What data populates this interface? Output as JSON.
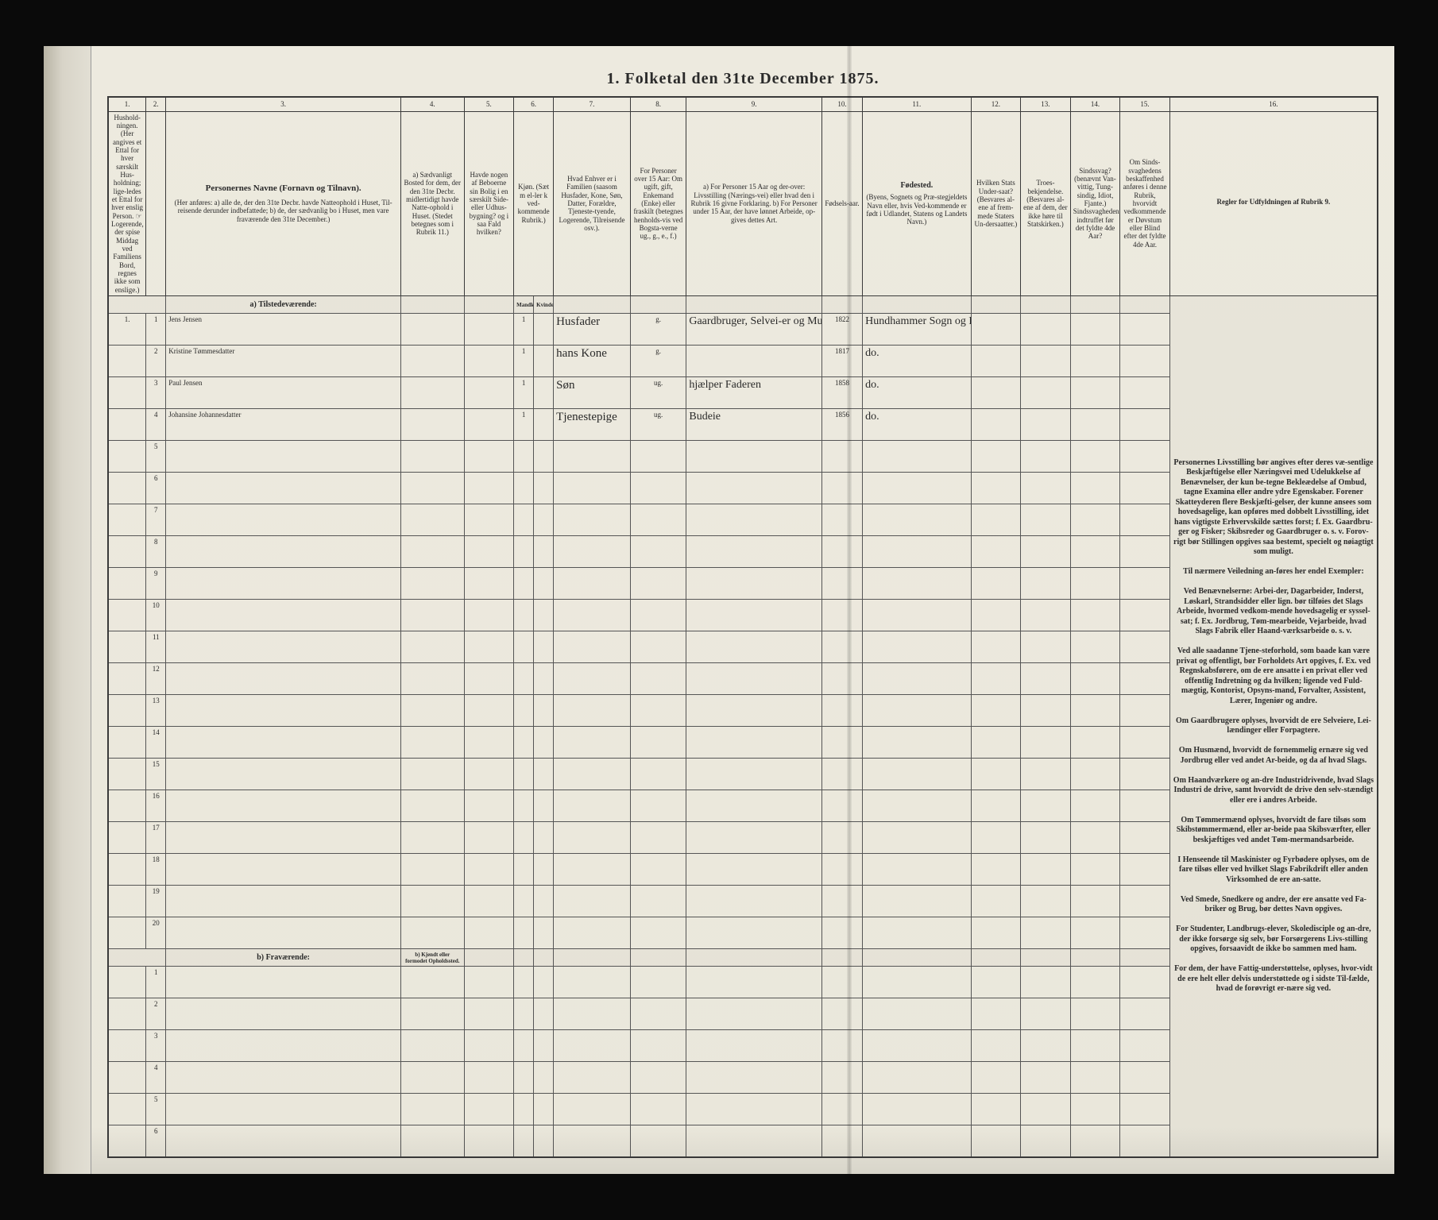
{
  "title": "1.  Folketal den 31te December 1875.",
  "columns": {
    "nums": [
      "1.",
      "2.",
      "3.",
      "4.",
      "5.",
      "6.",
      "7.",
      "8.",
      "9.",
      "10.",
      "11.",
      "12.",
      "13.",
      "14.",
      "15.",
      "16."
    ],
    "h1": "Hushold-ningen. (Her angives et Ettal for hver særskilt Hus-holdning; lige-ledes et Ettal for hver enslig Person. ☞ Logerende, der spise Middag ved Familiens Bord, regnes ikke som enslige.)",
    "h2": "",
    "h3_title": "Personernes Navne (Fornavn og Tilnavn).",
    "h3_body": "(Her anføres: a) alle de, der den 31te Decbr. havde Natteophold i Huset, Til-reisende derunder indbefattede; b) de, der sædvanlig bo i Huset, men vare fraværende den 31te December.)",
    "h4": "a) Sædvanligt Bosted for dem, der den 31te Decbr. midlertidigt havde Natte-ophold i Huset. (Stedet betegnes som i Rubrik 11.)",
    "h5": "Havde nogen af Beboerne sin Bolig i en særskilt Side- eller Udhus-bygning? og i saa Fald hvilken?",
    "h6": "Kjøn. (Sæt m el-ler k ved-kommende Rubrik.)",
    "h7": "Hvad Enhver er i Familien (saasom Husfader, Kone, Søn, Datter, Forældre, Tjeneste-tyende, Logerende, Tilreisende osv.).",
    "h8": "For Personer over 15 Aar: Om ugift, gift, Enkemand (Enke) eller fraskilt (betegnes henholds-vis ved Bogsta-verne ug., g., e., f.)",
    "h9": "a) For Personer 15 Aar og der-over: Livsstilling (Nærings-vei) eller hvad den i Rubrik 16 givne Forklaring. b) For Personer under 15 Aar, der have lønnet Arbeide, op-gives dettes Art.",
    "h10": "Fødsels-aar.",
    "h11_title": "Fødested.",
    "h11_body": "(Byens, Sognets og Præ-stegjeldets Navn eller, hvis Ved-kommende er født i Udlandet, Statens og Landets Navn.)",
    "h12": "Hvilken Stats Under-saat? (Besvares al-ene af frem-mede Staters Un-dersaatter.)",
    "h13": "Troes-bekjendelse. (Besvares al-ene af dem, der ikke høre til Statskirken.)",
    "h14": "Sindssvag? (benævnt Van-vittig, Tung-sindig, Idiot, Fjante.) Sindssvagheden indtruffet før det fyldte 4de Aar?",
    "h15": "Om Sinds-svaghedens beskaffenhed anføres i denne Rubrik, hvorvidt vedkommende er Døvstum eller Blind efter det fyldte 4de Aar.",
    "h16_title": "Regler for Udfyldningen af Rubrik 9."
  },
  "section_a": "a) Tilstedeværende:",
  "section_b": "b) Fraværende:",
  "section_b_col4": "b) Kjendt eller formodet Opholdssted.",
  "rows": [
    {
      "hh": "1.",
      "n": "1",
      "name": "Jens Jensen",
      "col5": "",
      "col6": "1",
      "rel": "Husfader",
      "civ": "g.",
      "occ": "Gaardbruger, Selvei-er og Murer",
      "year": "1822",
      "birthplace": "Hundhammer Sogn og Prgj."
    },
    {
      "hh": "",
      "n": "2",
      "name": "Kristine Tømmesdatter",
      "col5": "",
      "col6": "1",
      "rel": "hans Kone",
      "civ": "g.",
      "occ": "",
      "year": "1817",
      "birthplace": "do."
    },
    {
      "hh": "",
      "n": "3",
      "name": "Paul Jensen",
      "col5": "",
      "col6": "1",
      "rel": "Søn",
      "civ": "ug.",
      "occ": "hjælper Faderen",
      "year": "1858",
      "birthplace": "do."
    },
    {
      "hh": "",
      "n": "4",
      "name": "Johansine Johannesdatter",
      "col5": "",
      "col6": "1",
      "rel": "Tjenestepige",
      "civ": "ug.",
      "occ": "Budeie",
      "year": "1856",
      "birthplace": "do."
    }
  ],
  "empty_a": [
    "5",
    "6",
    "7",
    "8",
    "9",
    "10",
    "11",
    "12",
    "13",
    "14",
    "15",
    "16",
    "17",
    "18",
    "19",
    "20"
  ],
  "empty_b": [
    "1",
    "2",
    "3",
    "4",
    "5",
    "6"
  ],
  "instructions": "Personernes Livsstilling bør angives efter deres væ-sentlige Beskjæftigelse eller Næringsvei med Udelukkelse af Benævnelser, der kun be-tegne Bekleædelse af Ombud, tagne Examina eller andre ydre Egenskaber. Forener Skatteyderen flere Beskjæfti-gelser, der kunne ansees som hovedsagelige, kan opføres med dobbelt Livsstilling, idet hans vigtigste Erhvervskilde sættes forst; f. Ex. Gaardbru-ger og Fisker; Skibsreder og Gaardbruger o. s. v. Forov-rigt bør Stillingen opgives saa bestemt, specielt og nøiagtigt som muligt.\n\nTil nærmere Veiledning an-føres her endel Exempler:\n\nVed Benævnelserne: Arbei-der, Dagarbeider, Inderst, Løskarl, Strandsidder eller lign. bør tilføies det Slags Arbeide, hvormed vedkom-mende hovedsagelig er syssel-sat; f. Ex. Jordbrug, Tøm-mearbeide, Vejarbeide, hvad Slags Fabrik eller Haand-værksarbeide o. s. v.\n\nVed alle saadanne Tjene-steforhold, som baade kan være privat og offentligt, bør Forholdets Art opgives, f. Ex. ved Regnskabsførere, om de ere ansatte i en privat eller ved offentlig Indretning og da hvilken; ligende ved Fuld-mægtig, Kontorist, Opsyns-mand, Forvalter, Assistent, Lærer, Ingeniør og andre.\n\nOm Gaardbrugere oplyses, hvorvidt de ere Selveiere, Lei-lændinger eller Forpagtere.\n\nOm Husmænd, hvorvidt de fornemmelig ernære sig ved Jordbrug eller ved andet Ar-beide, og da af hvad Slags.\n\nOm Haandværkere og an-dre Industridrivende, hvad Slags Industri de drive, samt hvorvidt de drive den selv-stændigt eller ere i andres Arbeide.\n\nOm Tømmermænd oplyses, hvorvidt de fare tilsøs som Skibstømmermænd, eller ar-beide paa Skibsværfter, eller beskjæftiges ved andet Tøm-mermandsarbeide.\n\nI Henseende til Maskinister og Fyrbødere oplyses, om de fare tilsøs eller ved hvilket Slags Fabrikdrift eller anden Virksomhed de ere an-satte.\n\nVed Smede, Snedkere og andre, der ere ansatte ved Fa-briker og Brug, bør dettes Navn opgives.\n\nFor Studenter, Landbrugs-elever, Skoledisciple og an-dre, der ikke forsørge sig selv, bør Forsørgerens Livs-stilling opgives, forsaavidt de ikke bo sammen med ham.\n\nFor dem, der have Fattig-understøttelse, oplyses, hvor-vidt de ere helt eller delvis understøttede og i sidste Til-fælde, hvad de forøvrigt er-nære sig ved."
}
